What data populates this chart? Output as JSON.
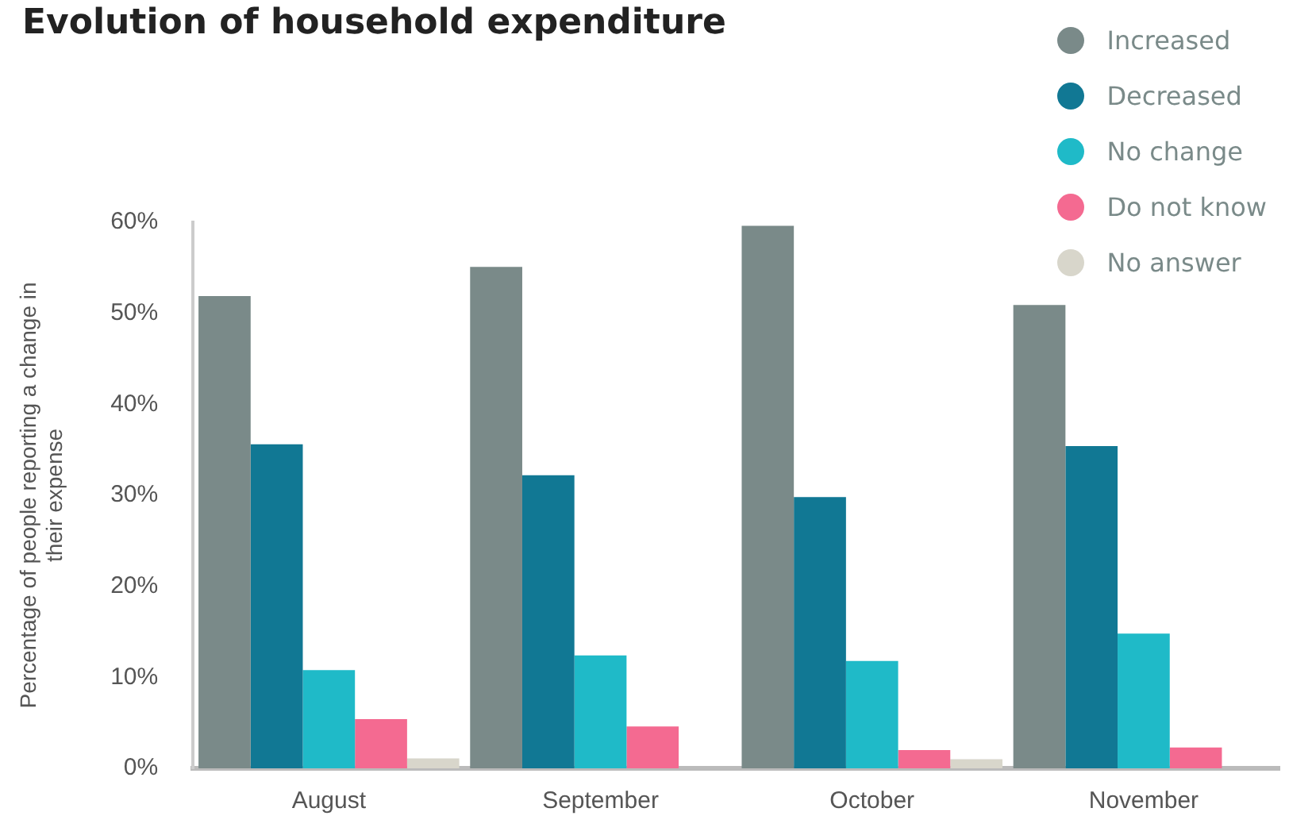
{
  "chart_data": {
    "type": "bar",
    "title": "Evolution of household expenditure",
    "ylabel": "Percentage of people reporting a change in their expense",
    "categories": [
      "August",
      "September",
      "October",
      "November"
    ],
    "series": [
      {
        "name": "Increased",
        "color": "#7a8a89",
        "values": [
          51.9,
          55.1,
          59.6,
          50.9
        ]
      },
      {
        "name": "Decreased",
        "color": "#117894",
        "values": [
          35.6,
          32.2,
          29.8,
          35.4
        ]
      },
      {
        "name": "No change",
        "color": "#1fbac8",
        "values": [
          10.8,
          12.4,
          11.8,
          14.8
        ]
      },
      {
        "name": "Do not know",
        "color": "#f46a91",
        "values": [
          5.4,
          4.6,
          2.0,
          2.3
        ]
      },
      {
        "name": "No answer",
        "color": "#d8d6cb",
        "values": [
          1.1,
          0,
          1.0,
          0
        ]
      }
    ],
    "ylim": [
      0,
      60
    ],
    "yticks": [
      {
        "value": 0,
        "label": "0%"
      },
      {
        "value": 10,
        "label": "10%"
      },
      {
        "value": 20,
        "label": "20%"
      },
      {
        "value": 30,
        "label": "30%"
      },
      {
        "value": 40,
        "label": "40%"
      },
      {
        "value": 50,
        "label": "50%"
      },
      {
        "value": 60,
        "label": "60%"
      }
    ],
    "grid": false,
    "legend": "top right"
  }
}
